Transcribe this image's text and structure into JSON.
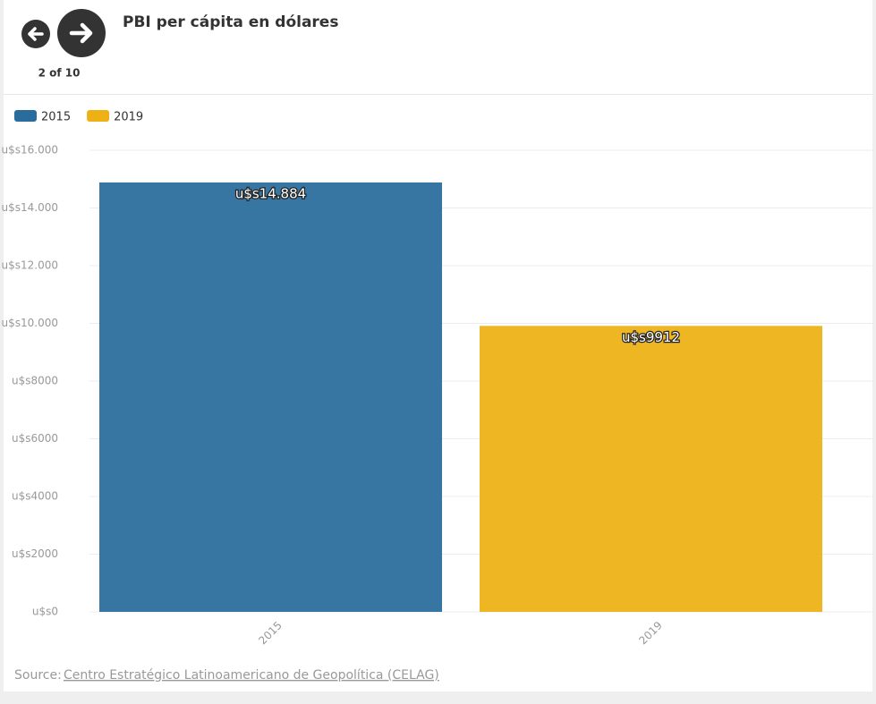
{
  "nav": {
    "counter": "2 of 10"
  },
  "chart_data": {
    "type": "bar",
    "title": "PBI per cápita en dólares",
    "categories": [
      "2015",
      "2019"
    ],
    "series": [
      {
        "name": "2015",
        "color": "#2a6d9c",
        "values": [
          14884,
          null
        ],
        "value_labels": [
          "u$s14.884",
          null
        ]
      },
      {
        "name": "2019",
        "color": "#eeb115",
        "values": [
          null,
          9912
        ],
        "value_labels": [
          null,
          "u$s9912"
        ]
      }
    ],
    "ylim": [
      0,
      16000
    ],
    "yticks": [
      {
        "value": 0,
        "label": "u$s0"
      },
      {
        "value": 2000,
        "label": "u$s2000"
      },
      {
        "value": 4000,
        "label": "u$s4000"
      },
      {
        "value": 6000,
        "label": "u$s6000"
      },
      {
        "value": 8000,
        "label": "u$s8000"
      },
      {
        "value": 10000,
        "label": "u$s10.000"
      },
      {
        "value": 12000,
        "label": "u$s12.000"
      },
      {
        "value": 14000,
        "label": "u$s14.000"
      },
      {
        "value": 16000,
        "label": "u$s16.000"
      }
    ],
    "grid": true,
    "legend": "top-left",
    "source_label": "Source:",
    "source": "Centro Estratégico Latinoamericano de Geopolítica (CELAG)"
  }
}
